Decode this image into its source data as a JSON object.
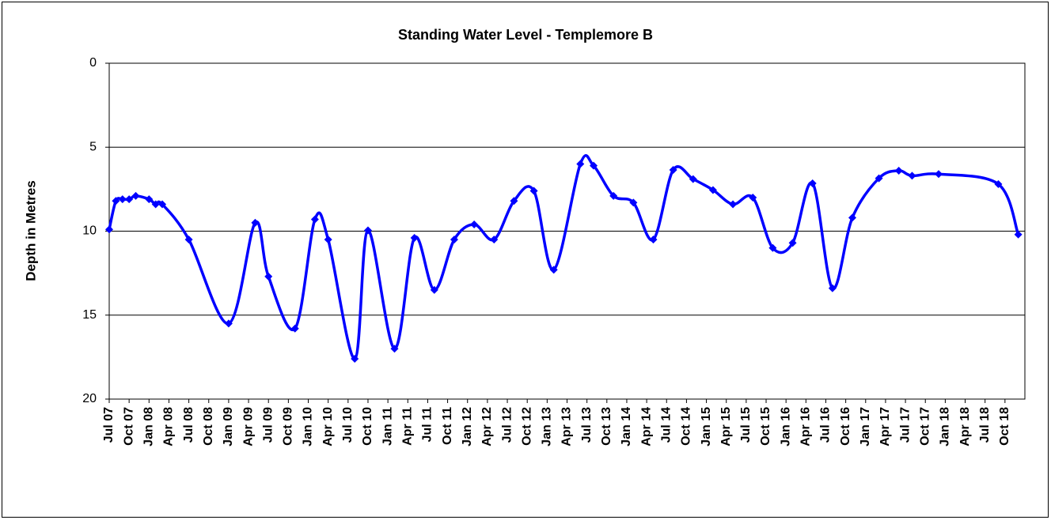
{
  "chart_data": {
    "type": "line",
    "title": "Standing Water Level - Templemore B",
    "ylabel": "Depth in Metres",
    "x": [
      "2007-07",
      "2007-08",
      "2007-09",
      "2007-10",
      "2007-11",
      "2008-01",
      "2008-02",
      "2008-03",
      "2008-07",
      "2009-01",
      "2009-05",
      "2009-07",
      "2009-11",
      "2010-02",
      "2010-04",
      "2010-08",
      "2010-10",
      "2011-02",
      "2011-05",
      "2011-08",
      "2011-11",
      "2012-02",
      "2012-05",
      "2012-08",
      "2012-11",
      "2013-02",
      "2013-06",
      "2013-08",
      "2013-11",
      "2014-02",
      "2014-05",
      "2014-08",
      "2014-11",
      "2015-02",
      "2015-05",
      "2015-08",
      "2015-11",
      "2016-02",
      "2016-05",
      "2016-08",
      "2016-11",
      "2017-03",
      "2017-06",
      "2017-08",
      "2017-12",
      "2018-09",
      "2018-12"
    ],
    "values": [
      9.9,
      8.2,
      8.1,
      8.1,
      7.9,
      8.1,
      8.4,
      8.4,
      10.5,
      15.5,
      9.5,
      12.7,
      15.8,
      9.3,
      10.5,
      17.6,
      9.95,
      17.0,
      10.4,
      13.5,
      10.5,
      9.6,
      10.5,
      8.2,
      7.6,
      12.3,
      6.0,
      6.1,
      7.9,
      8.3,
      10.5,
      6.35,
      6.9,
      7.55,
      8.4,
      8.0,
      11.0,
      10.7,
      7.15,
      13.4,
      9.2,
      6.85,
      6.4,
      6.7,
      6.6,
      7.2,
      10.2
    ],
    "color": "#0000ff",
    "smooth": true,
    "markers": "diamond",
    "y_inverted": true,
    "ylim": [
      0,
      20
    ],
    "yticks": [
      0,
      5,
      10,
      15,
      20
    ],
    "grid": true,
    "xlim": [
      "2007-07",
      "2019-01"
    ],
    "xticks": [
      {
        "value": "2007-07",
        "label": "Jul 07"
      },
      {
        "value": "2007-10",
        "label": "Oct 07"
      },
      {
        "value": "2008-01",
        "label": "Jan 08"
      },
      {
        "value": "2008-04",
        "label": "Apr 08"
      },
      {
        "value": "2008-07",
        "label": "Jul 08"
      },
      {
        "value": "2008-10",
        "label": "Oct 08"
      },
      {
        "value": "2009-01",
        "label": "Jan 09"
      },
      {
        "value": "2009-04",
        "label": "Apr 09"
      },
      {
        "value": "2009-07",
        "label": "Jul 09"
      },
      {
        "value": "2009-10",
        "label": "Oct 09"
      },
      {
        "value": "2010-01",
        "label": "Jan 10"
      },
      {
        "value": "2010-04",
        "label": "Apr 10"
      },
      {
        "value": "2010-07",
        "label": "Jul 10"
      },
      {
        "value": "2010-10",
        "label": "Oct 10"
      },
      {
        "value": "2011-01",
        "label": "Jan 11"
      },
      {
        "value": "2011-04",
        "label": "Apr 11"
      },
      {
        "value": "2011-07",
        "label": "Jul 11"
      },
      {
        "value": "2011-10",
        "label": "Oct 11"
      },
      {
        "value": "2012-01",
        "label": "Jan 12"
      },
      {
        "value": "2012-04",
        "label": "Apr 12"
      },
      {
        "value": "2012-07",
        "label": "Jul 12"
      },
      {
        "value": "2012-10",
        "label": "Oct 12"
      },
      {
        "value": "2013-01",
        "label": "Jan 13"
      },
      {
        "value": "2013-04",
        "label": "Apr 13"
      },
      {
        "value": "2013-07",
        "label": "Jul 13"
      },
      {
        "value": "2013-10",
        "label": "Oct 13"
      },
      {
        "value": "2014-01",
        "label": "Jan 14"
      },
      {
        "value": "2014-04",
        "label": "Apr 14"
      },
      {
        "value": "2014-07",
        "label": "Jul 14"
      },
      {
        "value": "2014-10",
        "label": "Oct 14"
      },
      {
        "value": "2015-01",
        "label": "Jan 15"
      },
      {
        "value": "2015-04",
        "label": "Apr 15"
      },
      {
        "value": "2015-07",
        "label": "Jul 15"
      },
      {
        "value": "2015-10",
        "label": "Oct 15"
      },
      {
        "value": "2016-01",
        "label": "Jan 16"
      },
      {
        "value": "2016-04",
        "label": "Apr 16"
      },
      {
        "value": "2016-07",
        "label": "Jul 16"
      },
      {
        "value": "2016-10",
        "label": "Oct 16"
      },
      {
        "value": "2017-01",
        "label": "Jan 17"
      },
      {
        "value": "2017-04",
        "label": "Apr 17"
      },
      {
        "value": "2017-07",
        "label": "Jul 17"
      },
      {
        "value": "2017-10",
        "label": "Oct 17"
      },
      {
        "value": "2018-01",
        "label": "Jan 18"
      },
      {
        "value": "2018-04",
        "label": "Apr 18"
      },
      {
        "value": "2018-07",
        "label": "Jul 18"
      },
      {
        "value": "2018-10",
        "label": "Oct 18"
      }
    ]
  }
}
